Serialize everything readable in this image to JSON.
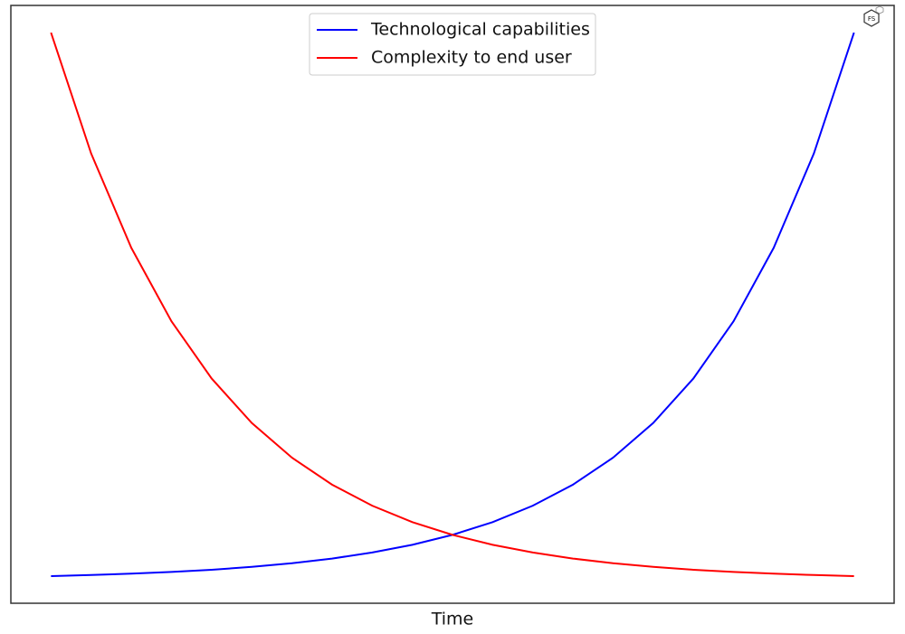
{
  "chart_data": {
    "type": "line",
    "x_label": "Time",
    "x": [
      0,
      0.25,
      0.5,
      0.75,
      1,
      1.25,
      1.5,
      1.75,
      2,
      2.25,
      2.5,
      2.75,
      3,
      3.25,
      3.5,
      3.75,
      4,
      4.25,
      4.5,
      4.75,
      5
    ],
    "series": [
      {
        "name": "Technological capabilities",
        "color": "#0000ff",
        "values": [
          1,
          1.28,
          1.65,
          2.12,
          2.72,
          3.49,
          4.48,
          5.75,
          7.39,
          9.49,
          12.18,
          15.64,
          20.09,
          25.79,
          33.12,
          42.52,
          54.6,
          70.11,
          90.02,
          115.6,
          148.4
        ]
      },
      {
        "name": "Complexity to end user",
        "color": "#ff0000",
        "values": [
          148.4,
          115.6,
          90.02,
          70.11,
          54.6,
          42.52,
          33.12,
          25.79,
          20.09,
          15.64,
          12.18,
          9.49,
          7.39,
          5.75,
          4.48,
          3.49,
          2.72,
          2.12,
          1.65,
          1.28,
          1
        ]
      }
    ],
    "xlim": [
      -0.25,
      5.25
    ],
    "ylim": [
      -6.37,
      155.77
    ],
    "legend": "upper center"
  }
}
